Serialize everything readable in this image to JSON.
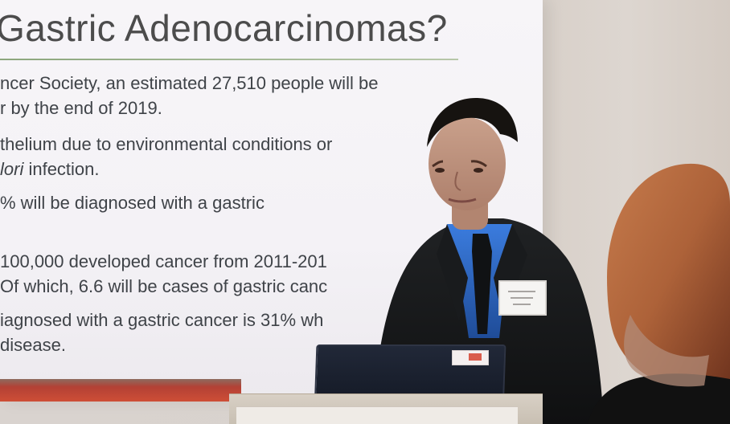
{
  "slide": {
    "title": "Gastric Adenocarcinomas?",
    "bullets": [
      {
        "line1": "ncer Society, an estimated 27,510 people will be",
        "line2": "r by the end of 2019."
      },
      {
        "line1": "thelium due to environmental conditions or",
        "line2_prefix": "",
        "line2_italic": "lori",
        "line2_suffix": " infection."
      },
      {
        "line1": "% will be diagnosed with a gastric"
      },
      {
        "line1": "100,000 developed cancer from 2011-201",
        "line2": "Of which, 6.6 will be cases of gastric canc"
      },
      {
        "line1": "iagnosed with a gastric cancer is 31% wh",
        "line2": "disease."
      }
    ]
  },
  "colors": {
    "slide_background": "#f5f3f7",
    "title_text": "#4c4c4c",
    "body_text": "#3f4348",
    "accent_rule": "#8ca67d",
    "wall": "#d8d0c9",
    "suit": "#151617",
    "shirt": "#2d64c8",
    "hair": "#b86a3d"
  },
  "scene_objects": [
    "projection-screen",
    "speaker",
    "podium",
    "laptop",
    "name-badge",
    "audience-member"
  ]
}
